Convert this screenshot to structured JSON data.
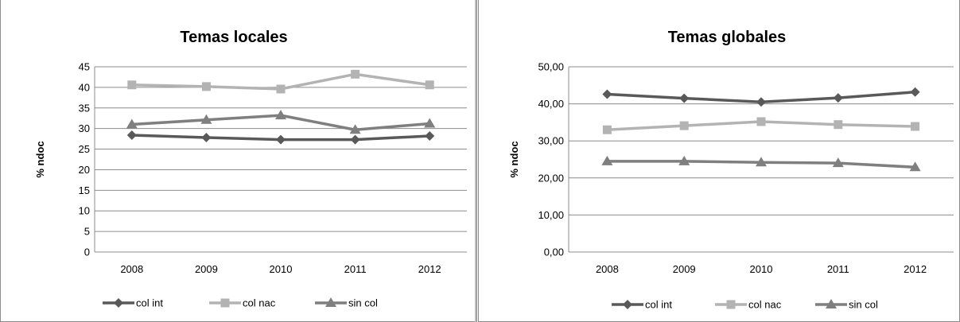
{
  "chart_data": [
    {
      "type": "line",
      "title": "Temas locales",
      "ylabel": "% ndoc",
      "xlabel": "",
      "x": [
        "2008",
        "2009",
        "2010",
        "2011",
        "2012"
      ],
      "ylim": [
        0,
        45
      ],
      "yticks": [
        "0",
        "5",
        "10",
        "15",
        "20",
        "25",
        "30",
        "35",
        "40",
        "45"
      ],
      "grid": true,
      "legend": "bottom",
      "series": [
        {
          "name": "col int",
          "marker": "diamond",
          "color": "#595959",
          "values": [
            28.4,
            27.8,
            27.3,
            27.3,
            28.2
          ]
        },
        {
          "name": "col nac",
          "marker": "square",
          "color": "#b3b3b3",
          "values": [
            40.6,
            40.2,
            39.6,
            43.2,
            40.6
          ]
        },
        {
          "name": "sin col",
          "marker": "triangle",
          "color": "#7f7f7f",
          "values": [
            31.0,
            32.1,
            33.2,
            29.7,
            31.2
          ]
        }
      ]
    },
    {
      "type": "line",
      "title": "Temas globales",
      "ylabel": "% ndoc",
      "xlabel": "",
      "x": [
        "2008",
        "2009",
        "2010",
        "2011",
        "2012"
      ],
      "ylim": [
        0,
        50
      ],
      "yticks": [
        "0,00",
        "10,00",
        "20,00",
        "30,00",
        "40,00",
        "50,00"
      ],
      "grid": true,
      "legend": "bottom",
      "series": [
        {
          "name": "col int",
          "marker": "diamond",
          "color": "#595959",
          "values": [
            42.6,
            41.5,
            40.5,
            41.6,
            43.2
          ]
        },
        {
          "name": "col nac",
          "marker": "square",
          "color": "#b3b3b3",
          "values": [
            33.0,
            34.1,
            35.2,
            34.4,
            33.9
          ]
        },
        {
          "name": "sin col",
          "marker": "triangle",
          "color": "#7f7f7f",
          "values": [
            24.5,
            24.5,
            24.2,
            24.0,
            22.9
          ]
        }
      ]
    }
  ]
}
